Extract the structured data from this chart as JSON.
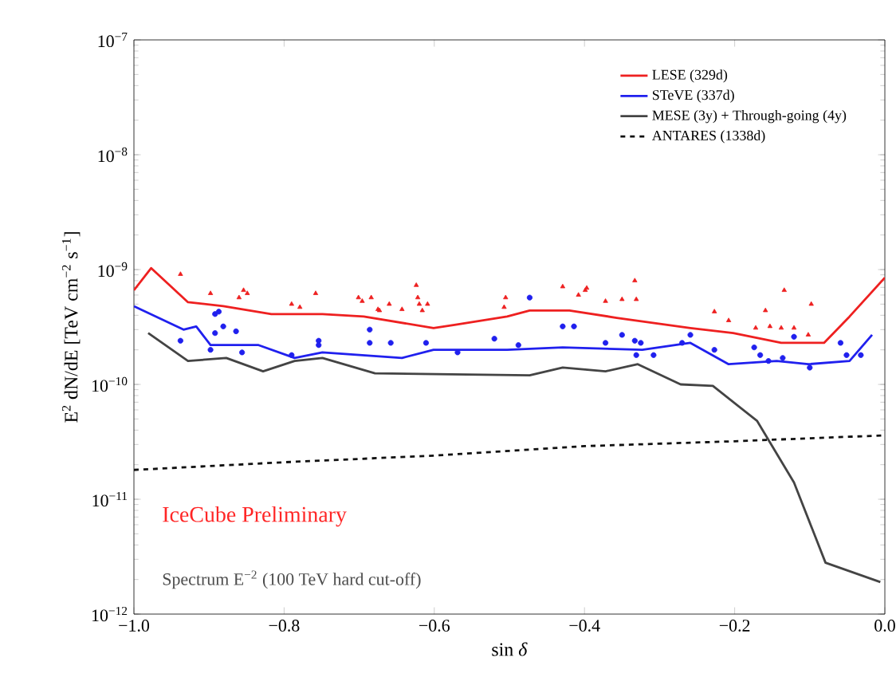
{
  "chart_data": {
    "type": "line",
    "xlabel": "sin *δ*",
    "ylabel": "E$^{2}$ dN/dE [TeV cm$^{−2}$ s$^{−1}$]",
    "log": true,
    "legend": "top right",
    "xlim": [
      -1.0,
      0.0
    ],
    "xticks": [
      {
        "value": -1.0,
        "label": "−1.0"
      },
      {
        "value": -0.8,
        "label": "−0.8"
      },
      {
        "value": -0.6,
        "label": "−0.6"
      },
      {
        "value": -0.4,
        "label": "−0.4"
      },
      {
        "value": -0.2,
        "label": "−0.2"
      },
      {
        "value": 0.0,
        "label": "0.0"
      }
    ],
    "ylim": [
      1e-12,
      1e-07
    ],
    "yticks": [
      {
        "value": 1e-12,
        "label": "10$^{−12}$"
      },
      {
        "value": 1e-11,
        "label": "10$^{−11}$"
      },
      {
        "value": 1e-10,
        "label": "10$^{−10}$"
      },
      {
        "value": 1e-09,
        "label": "10$^{−9}$"
      },
      {
        "value": 1e-08,
        "label": "10$^{−8}$"
      },
      {
        "value": 1e-07,
        "label": "10$^{−7}$"
      }
    ],
    "annotations": [
      "IceCube Preliminary",
      "Spectrum E$^{−2}$ (100 TeV hard cut-off)"
    ],
    "series": [
      {
        "name": "LESE (329d)",
        "color": "#ee2020",
        "line_style": "solid",
        "x": [
          -1.0,
          -0.977,
          -0.928,
          -0.881,
          -0.817,
          -0.749,
          -0.694,
          -0.601,
          -0.573,
          -0.503,
          -0.473,
          -0.42,
          -0.357,
          -0.259,
          -0.202,
          -0.138,
          -0.081,
          -0.047,
          0.0
        ],
        "values": [
          6.6e-10,
          1.03e-09,
          5.2e-10,
          4.8e-10,
          4.1e-10,
          4.1e-10,
          3.9e-10,
          3.1e-10,
          3.3e-10,
          3.9e-10,
          4.4e-10,
          4.4e-10,
          3.8e-10,
          3.1e-10,
          2.8e-10,
          2.3e-10,
          2.3e-10,
          3.9e-10,
          8.5e-10
        ]
      },
      {
        "name": "STeVE (337d)",
        "color": "#2020ee",
        "line_style": "solid",
        "x": [
          -1.0,
          -0.934,
          -0.917,
          -0.898,
          -0.834,
          -0.786,
          -0.749,
          -0.643,
          -0.601,
          -0.503,
          -0.429,
          -0.323,
          -0.259,
          -0.208,
          -0.144,
          -0.102,
          -0.047,
          -0.017
        ],
        "values": [
          4.8e-10,
          3e-10,
          3.2e-10,
          2.2e-10,
          2.2e-10,
          1.7e-10,
          1.9e-10,
          1.7e-10,
          2e-10,
          2e-10,
          2.1e-10,
          2e-10,
          2.3e-10,
          1.5e-10,
          1.6e-10,
          1.5e-10,
          1.6e-10,
          2.7e-10
        ]
      },
      {
        "name": "MESE (3y) + Through-going (4y)",
        "color": "#444444",
        "line_style": "solid",
        "x": [
          -0.981,
          -0.928,
          -0.877,
          -0.828,
          -0.786,
          -0.749,
          -0.679,
          -0.473,
          -0.429,
          -0.372,
          -0.329,
          -0.272,
          -0.229,
          -0.17,
          -0.121,
          -0.079,
          -0.006
        ],
        "values": [
          2.8e-10,
          1.6e-10,
          1.7e-10,
          1.3e-10,
          1.6e-10,
          1.7e-10,
          1.25e-10,
          1.2e-10,
          1.4e-10,
          1.3e-10,
          1.5e-10,
          1e-10,
          9.7e-11,
          4.8e-11,
          1.4e-11,
          2.8e-12,
          1.9e-12
        ]
      },
      {
        "name": "ANTARES (1338d)",
        "color": "#111111",
        "line_style": "dashed",
        "x": [
          -1.0,
          -0.8,
          -0.6,
          -0.4,
          -0.2,
          0.0
        ],
        "values": [
          1.8e-11,
          2.1e-11,
          2.4e-11,
          2.9e-11,
          3.2e-11,
          3.6e-11
        ]
      },
      {
        "type": "scatter",
        "color": "#ee2020",
        "marker": "triangle",
        "x": [
          -0.938,
          -0.898,
          -0.86,
          -0.854,
          -0.849,
          -0.79,
          -0.779,
          -0.758,
          -0.701,
          -0.696,
          -0.684,
          -0.675,
          -0.673,
          -0.66,
          -0.643,
          -0.624,
          -0.622,
          -0.62,
          -0.616,
          -0.609,
          -0.505,
          -0.507,
          -0.429,
          -0.408,
          -0.399,
          -0.397,
          -0.372,
          -0.35,
          -0.333,
          -0.331,
          -0.227,
          -0.208,
          -0.172,
          -0.159,
          -0.153,
          -0.138,
          -0.134,
          -0.121,
          -0.098,
          -0.102
        ],
        "values": [
          9.1e-10,
          6.2e-10,
          5.7e-10,
          6.6e-10,
          6.2e-10,
          5e-10,
          4.7e-10,
          6.2e-10,
          5.7e-10,
          5.3e-10,
          5.7e-10,
          4.5e-10,
          4.4e-10,
          5e-10,
          4.5e-10,
          7.3e-10,
          5.7e-10,
          5e-10,
          4.4e-10,
          5e-10,
          5.7e-10,
          4.7e-10,
          7.1e-10,
          6e-10,
          6.6e-10,
          6.9e-10,
          5.3e-10,
          5.5e-10,
          8e-10,
          5.5e-10,
          4.3e-10,
          3.6e-10,
          3.1e-10,
          4.4e-10,
          3.2e-10,
          3.1e-10,
          6.6e-10,
          3.1e-10,
          5e-10,
          2.7e-10
        ]
      },
      {
        "type": "scatter",
        "color": "#2020ee",
        "marker": "circle",
        "x": [
          -0.938,
          -0.892,
          -0.887,
          -0.881,
          -0.892,
          -0.864,
          -0.898,
          -0.856,
          -0.79,
          -0.754,
          -0.754,
          -0.686,
          -0.686,
          -0.658,
          -0.611,
          -0.569,
          -0.52,
          -0.488,
          -0.473,
          -0.429,
          -0.414,
          -0.372,
          -0.35,
          -0.333,
          -0.325,
          -0.331,
          -0.308,
          -0.27,
          -0.259,
          -0.227,
          -0.174,
          -0.166,
          -0.155,
          -0.136,
          -0.121,
          -0.1,
          -0.059,
          -0.051,
          -0.032
        ],
        "values": [
          2.4e-10,
          4.1e-10,
          4.3e-10,
          3.2e-10,
          2.8e-10,
          2.9e-10,
          2e-10,
          1.9e-10,
          1.8e-10,
          2.4e-10,
          2.2e-10,
          3e-10,
          2.3e-10,
          2.3e-10,
          2.3e-10,
          1.9e-10,
          2.5e-10,
          2.2e-10,
          5.7e-10,
          3.2e-10,
          3.2e-10,
          2.3e-10,
          2.7e-10,
          2.4e-10,
          2.3e-10,
          1.8e-10,
          1.8e-10,
          2.3e-10,
          2.7e-10,
          2e-10,
          2.1e-10,
          1.8e-10,
          1.6e-10,
          1.7e-10,
          2.6e-10,
          1.4e-10,
          2.3e-10,
          1.8e-10,
          1.8e-10
        ]
      }
    ]
  }
}
